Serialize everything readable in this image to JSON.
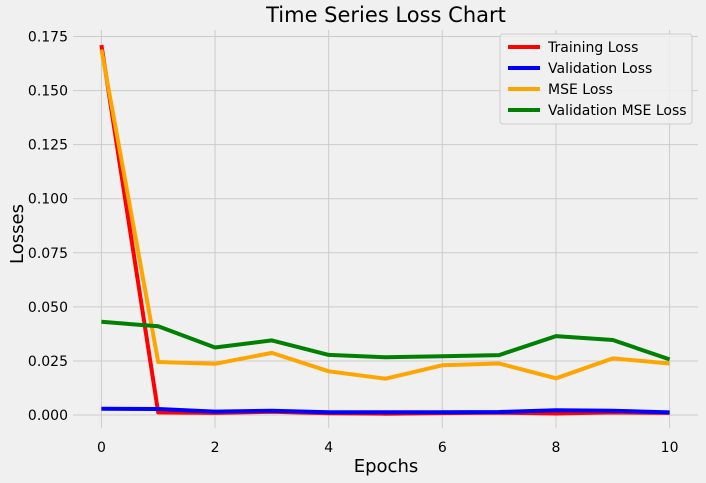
{
  "chart_data": {
    "type": "line",
    "title": "Time Series Loss Chart",
    "xlabel": "Epochs",
    "ylabel": "Losses",
    "xlim": [
      -0.5,
      10.5
    ],
    "ylim": [
      -0.006,
      0.178
    ],
    "xticks": [
      0,
      2,
      4,
      6,
      8,
      10
    ],
    "xtick_labels": [
      "0",
      "2",
      "4",
      "6",
      "8",
      "10"
    ],
    "yticks": [
      0.0,
      0.025,
      0.05,
      0.075,
      0.1,
      0.125,
      0.15,
      0.175
    ],
    "ytick_labels": [
      "0.000",
      "0.025",
      "0.050",
      "0.075",
      "0.100",
      "0.125",
      "0.150",
      "0.175"
    ],
    "grid": true,
    "legend": "top-right",
    "x": [
      0,
      1,
      2,
      3,
      4,
      5,
      6,
      7,
      8,
      9,
      10
    ],
    "series": [
      {
        "name": "Training Loss",
        "color": "#ff0000",
        "values": [
          0.171,
          0.0012,
          0.001,
          0.0015,
          0.0008,
          0.0006,
          0.0009,
          0.0011,
          0.0007,
          0.0012,
          0.001
        ]
      },
      {
        "name": "Validation Loss",
        "color": "#0000ff",
        "values": [
          0.0029,
          0.0028,
          0.0016,
          0.002,
          0.0013,
          0.0013,
          0.0013,
          0.0014,
          0.0022,
          0.002,
          0.0012
        ]
      },
      {
        "name": "MSE Loss",
        "color": "#ffa500",
        "values": [
          0.169,
          0.0245,
          0.0237,
          0.0287,
          0.0202,
          0.0168,
          0.023,
          0.0238,
          0.017,
          0.0262,
          0.0238
        ]
      },
      {
        "name": "Validation MSE Loss",
        "color": "#008000",
        "values": [
          0.0431,
          0.041,
          0.0312,
          0.0345,
          0.0278,
          0.0267,
          0.0272,
          0.0277,
          0.0365,
          0.0347,
          0.0257
        ]
      }
    ]
  }
}
